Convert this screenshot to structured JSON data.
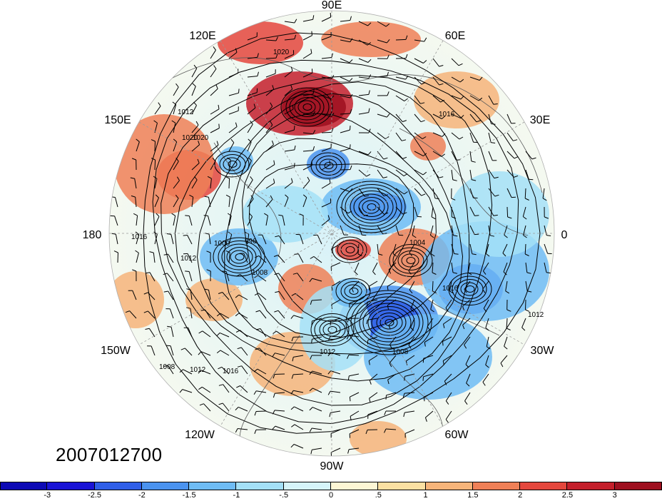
{
  "map": {
    "timestamp": "2007012700",
    "longitude_labels": [
      "90E",
      "60E",
      "30E",
      "0",
      "30W",
      "60W",
      "90W",
      "120W",
      "150W",
      "180",
      "150E",
      "120E"
    ],
    "isobar_labels": [
      "1020",
      "1016",
      "1012",
      "1008",
      "1004",
      "1000",
      "996",
      "1012",
      "1020",
      "1016",
      "1012",
      "1008",
      "1012",
      "1016",
      "1008",
      "1020",
      "1012",
      "1008",
      "1016"
    ],
    "colorbar": {
      "tick_labels": [
        "-3",
        "-2.5",
        "-2",
        "-1.5",
        "-1",
        "-.5",
        "0",
        ".5",
        "1",
        "1.5",
        "2",
        "2.5",
        "3"
      ],
      "colors": [
        "#1a14d6",
        "#2f5ee8",
        "#4b93ef",
        "#6fbcf4",
        "#a4e0f7",
        "#d6f4f9",
        "#fdf6d4",
        "#fbe0a2",
        "#f6b47a",
        "#ef8057",
        "#e4473d",
        "#c41f2b",
        "#9e0f1f"
      ]
    },
    "colors": {
      "land_outline": "#555555",
      "contour": "#000000",
      "grid": "#9a9a9a"
    }
  }
}
